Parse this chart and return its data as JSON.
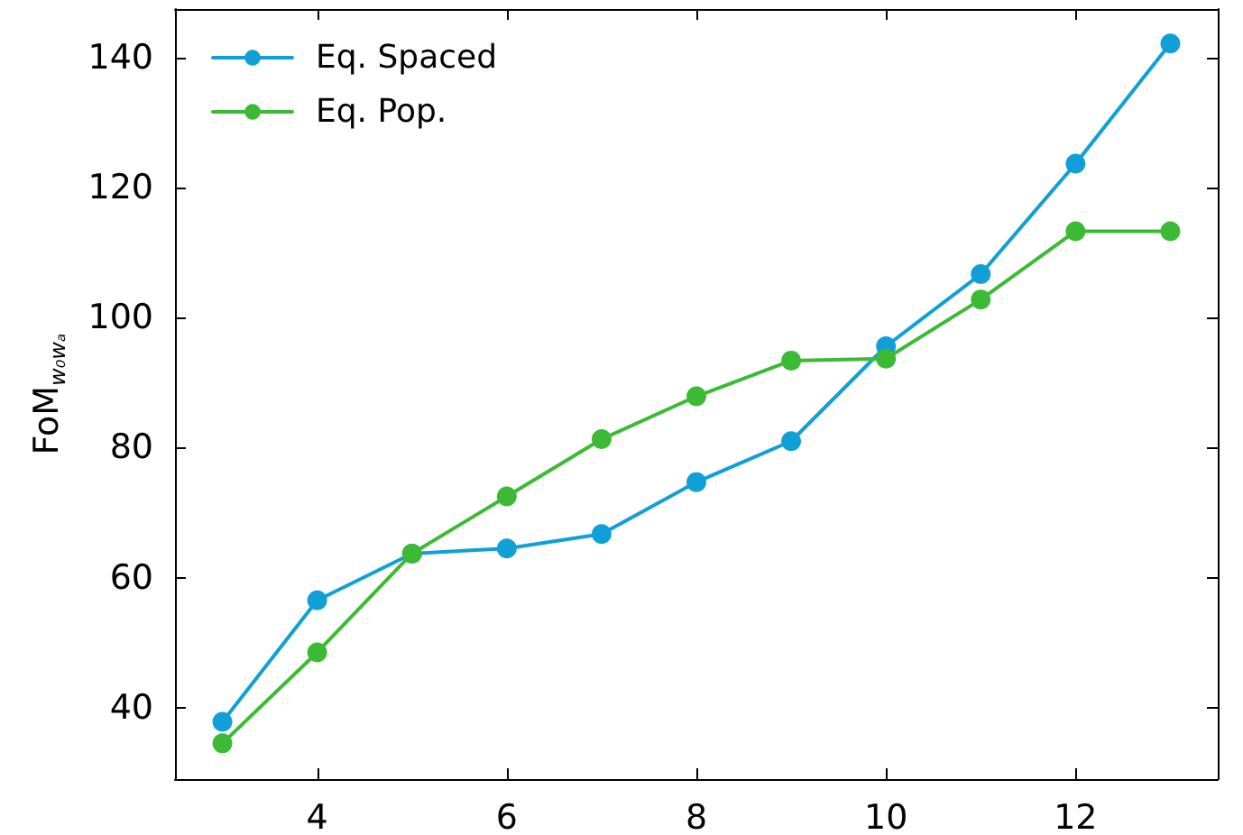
{
  "chart_data": {
    "type": "line",
    "ylabel": "FoM$_{w₀wₐ}$",
    "x": [
      3,
      4,
      5,
      6,
      7,
      8,
      9,
      10,
      11,
      12,
      13
    ],
    "series": [
      {
        "name": "Eq. Spaced",
        "color": "#109fd6",
        "values": [
          37.8,
          56.5,
          63.7,
          64.5,
          66.7,
          74.7,
          81.0,
          95.6,
          106.7,
          123.7,
          142.2
        ]
      },
      {
        "name": "Eq. Pop.",
        "color": "#3dba35",
        "values": [
          34.5,
          48.5,
          63.7,
          72.5,
          81.3,
          87.9,
          93.4,
          93.7,
          102.8,
          113.3,
          113.3
        ]
      }
    ],
    "xlim": [
      2.5,
      13.5
    ],
    "xticks": [
      4,
      6,
      8,
      10,
      12
    ],
    "ylim": [
      29,
      147.5
    ],
    "yticks": [
      40,
      60,
      80,
      100,
      120,
      140
    ],
    "grid": false,
    "legend": "top left",
    "marker": "circle",
    "line_style": "solid"
  }
}
